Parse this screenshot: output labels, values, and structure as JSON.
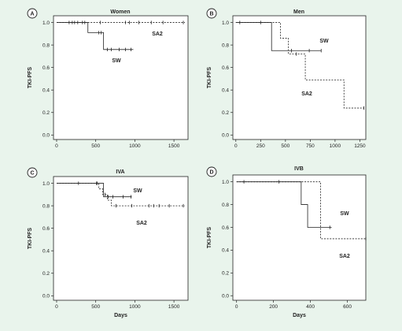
{
  "figure": {
    "background": "#e9f4ec",
    "panel_background": "#ffffff",
    "ink": "#222222"
  },
  "chart_data": [
    {
      "type": "line",
      "panel_label": "A",
      "title": "Women",
      "xlabel": "",
      "ylabel": "TKI-PFS",
      "xlim": [
        -40,
        1680
      ],
      "ylim": [
        -0.04,
        1.06
      ],
      "xticks": [
        0,
        500,
        1000,
        1500
      ],
      "yticks": [
        0.0,
        0.2,
        0.4,
        0.6,
        0.8,
        1.0
      ],
      "ytick_labels": [
        "0.0",
        "0.2",
        "0.4",
        "0.6",
        "0.8",
        "1.0"
      ],
      "series": [
        {
          "name": "SW",
          "dash": "solid",
          "x": [
            0,
            400,
            400,
            600,
            600,
            980
          ],
          "y": [
            1.0,
            1.0,
            0.91,
            0.91,
            0.76,
            0.76
          ],
          "censors": [
            [
              160,
              1.0
            ],
            [
              230,
              1.0
            ],
            [
              270,
              1.0
            ],
            [
              360,
              1.0
            ],
            [
              540,
              0.91
            ],
            [
              570,
              0.91
            ],
            [
              650,
              0.76
            ],
            [
              700,
              0.76
            ],
            [
              800,
              0.76
            ],
            [
              880,
              0.76
            ],
            [
              950,
              0.76
            ]
          ]
        },
        {
          "name": "SA2",
          "dash": "dashed",
          "x": [
            0,
            1640
          ],
          "y": [
            1.0,
            1.0
          ],
          "censors": [
            [
              200,
              1.0
            ],
            [
              330,
              1.0
            ],
            [
              560,
              1.0
            ],
            [
              880,
              1.0
            ],
            [
              930,
              1.0
            ],
            [
              1050,
              1.0
            ],
            [
              1210,
              1.0
            ],
            [
              1360,
              1.0
            ],
            [
              1620,
              1.0
            ]
          ]
        }
      ]
    },
    {
      "type": "line",
      "panel_label": "B",
      "title": "Men",
      "xlabel": "",
      "ylabel": "TKI-PFS",
      "xlim": [
        -30,
        1310
      ],
      "ylim": [
        -0.04,
        1.06
      ],
      "xticks": [
        0,
        250,
        500,
        750,
        1000,
        1250
      ],
      "yticks": [
        0.0,
        0.2,
        0.4,
        0.6,
        0.8,
        1.0
      ],
      "ytick_labels": [
        "0.0",
        "0.2",
        "0.4",
        "0.6",
        "0.8",
        "1.0"
      ],
      "series": [
        {
          "name": "SW",
          "dash": "solid",
          "x": [
            0,
            360,
            360,
            860
          ],
          "y": [
            1.0,
            1.0,
            0.75,
            0.75
          ],
          "censors": [
            [
              40,
              1.0
            ],
            [
              250,
              1.0
            ],
            [
              560,
              0.75
            ],
            [
              740,
              0.75
            ],
            [
              860,
              0.75
            ]
          ]
        },
        {
          "name": "SA2",
          "dash": "dashed",
          "x": [
            0,
            450,
            450,
            530,
            530,
            700,
            700,
            1090,
            1090,
            1290
          ],
          "y": [
            1.0,
            1.0,
            0.86,
            0.86,
            0.72,
            0.72,
            0.49,
            0.49,
            0.24,
            0.24
          ],
          "censors": [
            [
              610,
              0.72
            ],
            [
              1290,
              0.24
            ]
          ]
        }
      ]
    },
    {
      "type": "line",
      "panel_label": "C",
      "title": "IVA",
      "xlabel": "Days",
      "ylabel": "TKI-PFS",
      "xlim": [
        -40,
        1680
      ],
      "ylim": [
        -0.04,
        1.06
      ],
      "xticks": [
        0,
        500,
        1000,
        1500
      ],
      "yticks": [
        0.0,
        0.2,
        0.4,
        0.6,
        0.8,
        1.0
      ],
      "ytick_labels": [
        "0.0",
        "0.2",
        "0.4",
        "0.6",
        "0.8",
        "1.0"
      ],
      "series": [
        {
          "name": "SW",
          "dash": "solid",
          "x": [
            0,
            600,
            600,
            960
          ],
          "y": [
            1.0,
            1.0,
            0.88,
            0.88
          ],
          "censors": [
            [
              280,
              1.0
            ],
            [
              510,
              1.0
            ],
            [
              660,
              0.88
            ],
            [
              720,
              0.88
            ],
            [
              850,
              0.88
            ],
            [
              950,
              0.88
            ]
          ]
        },
        {
          "name": "SA2",
          "dash": "dashed",
          "x": [
            0,
            540,
            540,
            590,
            590,
            650,
            650,
            700,
            700,
            1640
          ],
          "y": [
            1.0,
            1.0,
            0.95,
            0.95,
            0.9,
            0.9,
            0.85,
            0.85,
            0.8,
            0.8
          ],
          "censors": [
            [
              520,
              1.0
            ],
            [
              620,
              0.9
            ],
            [
              760,
              0.8
            ],
            [
              960,
              0.8
            ],
            [
              1180,
              0.8
            ],
            [
              1240,
              0.8
            ],
            [
              1310,
              0.8
            ],
            [
              1440,
              0.8
            ],
            [
              1620,
              0.8
            ]
          ]
        }
      ]
    },
    {
      "type": "line",
      "panel_label": "D",
      "title": "IVB",
      "xlabel": "Days",
      "ylabel": "TKI-PFS",
      "xlim": [
        -20,
        700
      ],
      "ylim": [
        -0.04,
        1.06
      ],
      "xticks": [
        0,
        200,
        400,
        600
      ],
      "yticks": [
        0.0,
        0.2,
        0.4,
        0.6,
        0.8,
        1.0
      ],
      "ytick_labels": [
        "0.0",
        "0.2",
        "0.4",
        "0.6",
        "0.8",
        "1.0"
      ],
      "series": [
        {
          "name": "SW",
          "dash": "solid",
          "x": [
            0,
            350,
            350,
            385,
            385,
            515
          ],
          "y": [
            1.0,
            1.0,
            0.8,
            0.8,
            0.6,
            0.6
          ],
          "censors": [
            [
              40,
              1.0
            ],
            [
              230,
              1.0
            ],
            [
              505,
              0.6
            ]
          ]
        },
        {
          "name": "SA2",
          "dash": "dashed",
          "x": [
            0,
            455,
            455,
            700
          ],
          "y": [
            1.0,
            1.0,
            0.5,
            0.5
          ],
          "censors": [
            [
              700,
              0.5
            ]
          ]
        }
      ]
    }
  ]
}
